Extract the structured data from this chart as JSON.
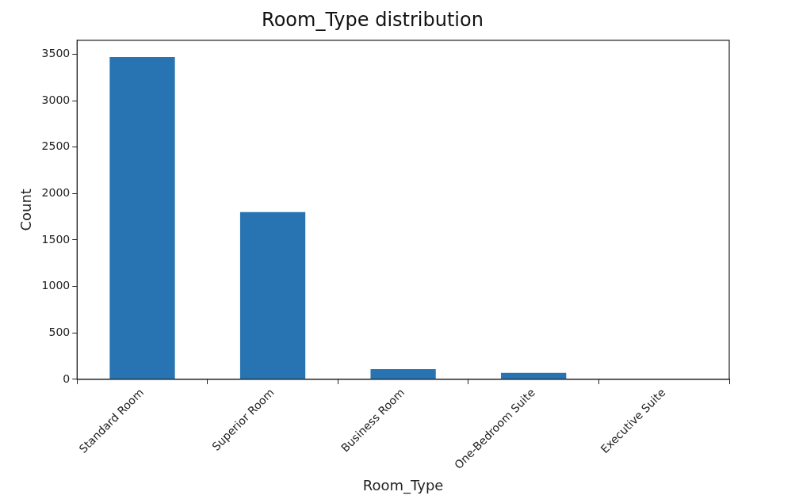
{
  "chart_data": {
    "type": "bar",
    "title": "Room_Type distribution",
    "xlabel": "Room_Type",
    "ylabel": "Count",
    "categories": [
      "Standard Room",
      "Superior Room",
      "Business Room",
      "One-Bedroom Suite",
      "Executive Suite"
    ],
    "values": [
      3470,
      1800,
      110,
      70,
      0
    ],
    "color": "#2874b2",
    "ylim": [
      0,
      3650
    ],
    "yticks": [
      0,
      500,
      1000,
      1500,
      2000,
      2500,
      3000,
      3500
    ],
    "grid": false,
    "legend": false
  }
}
